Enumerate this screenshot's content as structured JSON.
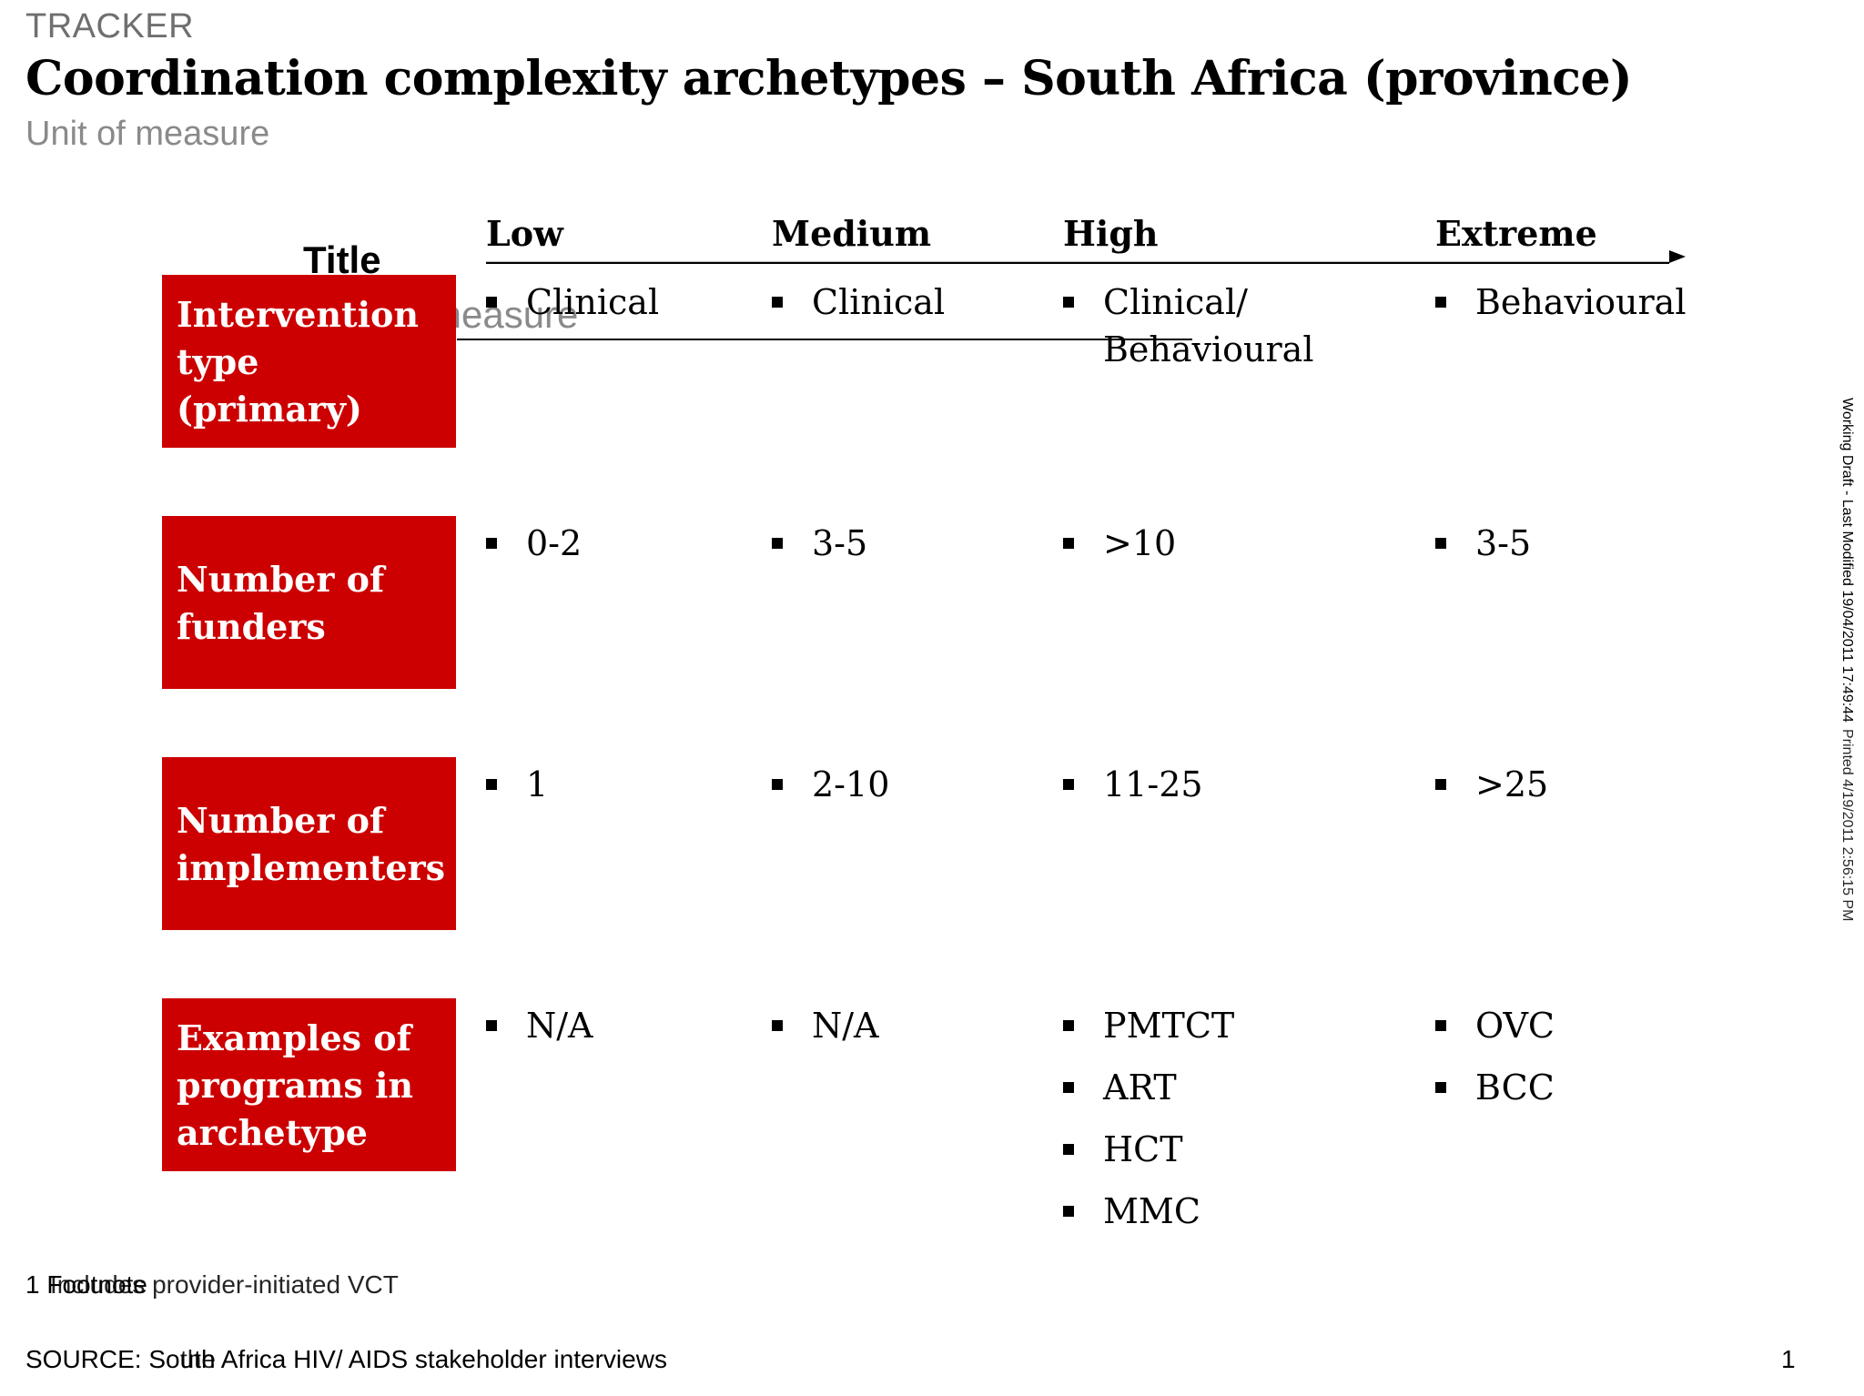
{
  "header": {
    "tracker": "TRACKER",
    "title": "Coordination complexity archetypes – South Africa (province)",
    "unit": "Unit of measure"
  },
  "placeholder": {
    "title": "Title",
    "measure": "measure"
  },
  "columns": [
    "Low",
    "Medium",
    "High",
    "Extreme"
  ],
  "rows": [
    {
      "label": "Intervention type (primary)",
      "cells": [
        [
          "Clinical"
        ],
        [
          "Clinical"
        ],
        [
          "Clinical/ Behavioural"
        ],
        [
          "Behavioural"
        ]
      ]
    },
    {
      "label": "Number of funders",
      "cells": [
        [
          "0-2"
        ],
        [
          "3-5"
        ],
        [
          ">10"
        ],
        [
          "3-5"
        ]
      ]
    },
    {
      "label": "Number of implementers",
      "cells": [
        [
          "1"
        ],
        [
          "2-10"
        ],
        [
          "11-25"
        ],
        [
          ">25"
        ]
      ]
    },
    {
      "label": "Examples of programs in archetype",
      "cells": [
        [
          "N/A"
        ],
        [
          "N/A"
        ],
        [
          "PMTCT",
          "ART",
          "HCT",
          "MMC"
        ],
        [
          "OVC",
          "BCC"
        ]
      ]
    }
  ],
  "footer": {
    "footnote": "1 Footnote",
    "footnote_overlay": "Includes provider-initiated VCT",
    "source": "SOURCE: South Africa HIV/ AIDS stakeholder interviews",
    "source_overlay": "the",
    "page_number": "1"
  },
  "side_note": {
    "working_draft": "Working Draft - Last Modified 19/04/2011 17:49:44",
    "printed": "Printed 4/19/2011 2:56:15 PM"
  },
  "colors": {
    "label_background": "#cc0000",
    "label_text": "#ffffff",
    "accent_gray": "#8a8a8a"
  }
}
